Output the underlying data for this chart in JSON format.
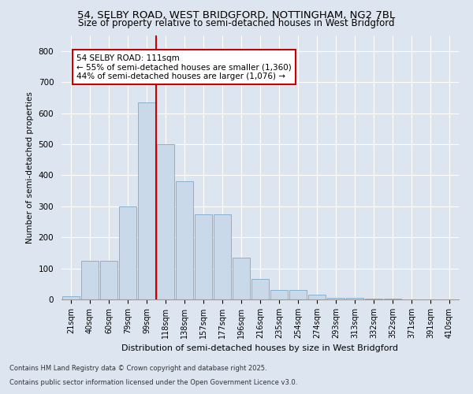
{
  "title_line1": "54, SELBY ROAD, WEST BRIDGFORD, NOTTINGHAM, NG2 7BL",
  "title_line2": "Size of property relative to semi-detached houses in West Bridgford",
  "xlabel": "Distribution of semi-detached houses by size in West Bridgford",
  "ylabel": "Number of semi-detached properties",
  "categories": [
    "21sqm",
    "40sqm",
    "60sqm",
    "79sqm",
    "99sqm",
    "118sqm",
    "138sqm",
    "157sqm",
    "177sqm",
    "196sqm",
    "216sqm",
    "235sqm",
    "254sqm",
    "274sqm",
    "293sqm",
    "313sqm",
    "332sqm",
    "352sqm",
    "371sqm",
    "391sqm",
    "410sqm"
  ],
  "values": [
    10,
    125,
    125,
    300,
    635,
    500,
    380,
    275,
    275,
    135,
    65,
    30,
    30,
    15,
    5,
    5,
    2,
    2,
    0,
    0,
    0
  ],
  "bar_color": "#c9d9ea",
  "bar_edge_color": "#7aaac8",
  "vline_x": 4.5,
  "vline_color": "#cc0000",
  "annotation_text": "54 SELBY ROAD: 111sqm\n← 55% of semi-detached houses are smaller (1,360)\n44% of semi-detached houses are larger (1,076) →",
  "annotation_box_color": "#ffffff",
  "annotation_box_edge": "#cc0000",
  "background_color": "#dde6f0",
  "plot_bg_color": "#dde6f0",
  "ylim": [
    0,
    850
  ],
  "yticks": [
    0,
    100,
    200,
    300,
    400,
    500,
    600,
    700,
    800
  ],
  "footer_line1": "Contains HM Land Registry data © Crown copyright and database right 2025.",
  "footer_line2": "Contains public sector information licensed under the Open Government Licence v3.0."
}
